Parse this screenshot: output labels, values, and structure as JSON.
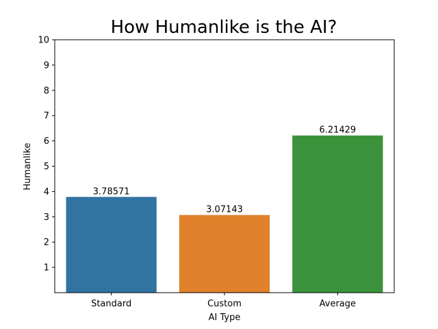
{
  "chart_data": {
    "type": "bar",
    "title": "How Humanlike is the AI?",
    "xlabel": "AI Type",
    "ylabel": "Humanlike",
    "categories": [
      "Standard",
      "Custom",
      "Average"
    ],
    "values": [
      3.78571,
      3.07143,
      6.21429
    ],
    "data_labels": [
      "3.78571",
      "3.07143",
      "6.21429"
    ],
    "colors": [
      "#3274a1",
      "#e1812c",
      "#3a923a"
    ],
    "ylim": [
      0,
      10
    ],
    "yticks": [
      1,
      2,
      3,
      4,
      5,
      6,
      7,
      8,
      9,
      10
    ],
    "grid": false,
    "legend": "none"
  }
}
